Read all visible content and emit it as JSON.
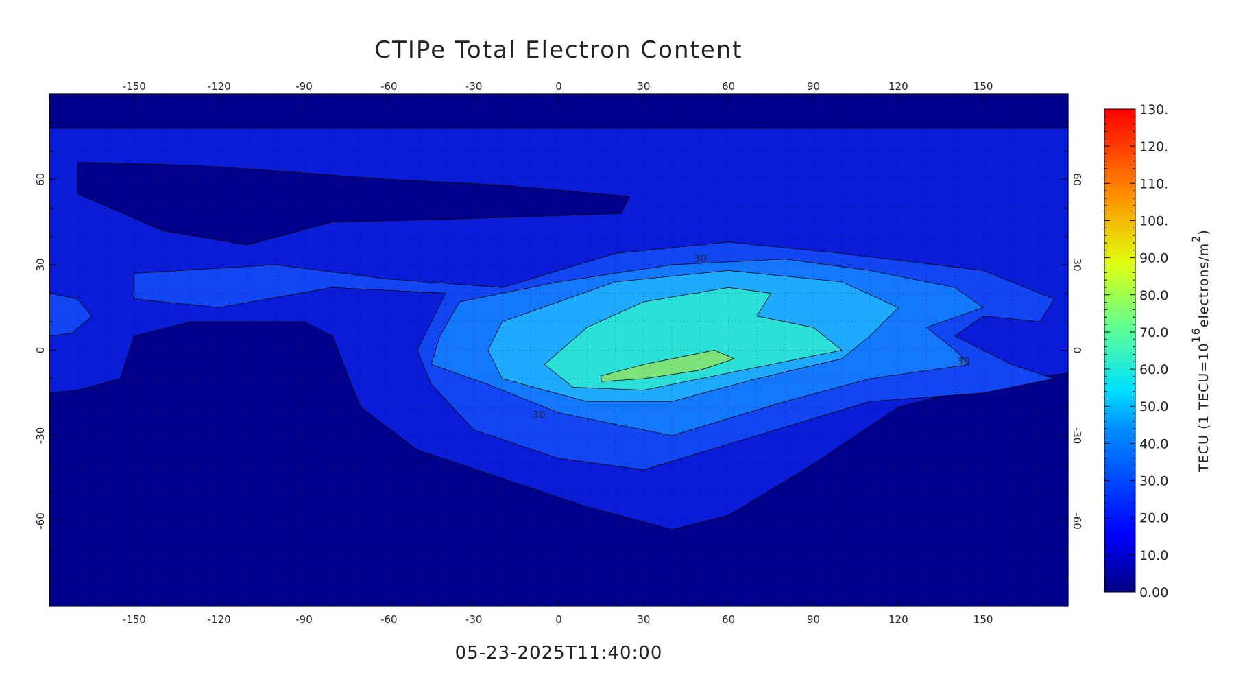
{
  "title": "CTIPe Total Electron Content",
  "timestamp": "05-23-2025T11:40:00",
  "map": {
    "xlim": [
      -180,
      180
    ],
    "ylim": [
      -90,
      90
    ],
    "xticks": [
      -150,
      -120,
      -90,
      -60,
      -30,
      0,
      30,
      60,
      90,
      120,
      150
    ],
    "yticks": [
      -60,
      -30,
      0,
      30,
      60
    ],
    "contour_labels": [
      "30",
      "30",
      "30"
    ]
  },
  "colorbar": {
    "lim": [
      0,
      130
    ],
    "ticks": [
      {
        "value": 0,
        "label": "0.00"
      },
      {
        "value": 10,
        "label": "10.0"
      },
      {
        "value": 20,
        "label": "20.0"
      },
      {
        "value": 30,
        "label": "30.0"
      },
      {
        "value": 40,
        "label": "40.0"
      },
      {
        "value": 50,
        "label": "50.0"
      },
      {
        "value": 60,
        "label": "60.0"
      },
      {
        "value": 70,
        "label": "70.0"
      },
      {
        "value": 80,
        "label": "80.0"
      },
      {
        "value": 90,
        "label": "90.0"
      },
      {
        "value": 100,
        "label": "100."
      },
      {
        "value": 110,
        "label": "110."
      },
      {
        "value": 120,
        "label": "120."
      },
      {
        "value": 130,
        "label": "130."
      }
    ],
    "label_parts": [
      "TECU (1 TECU=10",
      "16",
      "electrons/m",
      "2",
      ")"
    ]
  }
}
